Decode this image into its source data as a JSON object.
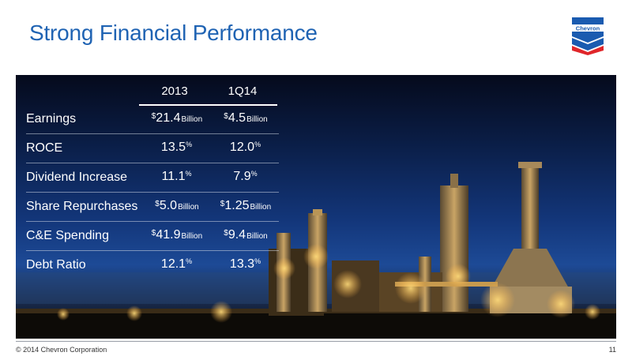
{
  "slide": {
    "title": "Strong Financial Performance",
    "logo_text": "Chevron",
    "footer_copyright": "© 2014 Chevron Corporation",
    "page_number": "11"
  },
  "table": {
    "headers": [
      "2013",
      "1Q14"
    ],
    "rows": [
      {
        "label": "Earnings",
        "c1": {
          "prefix": "$",
          "value": "21.4",
          "suffix": "",
          "unit": "Billion"
        },
        "c2": {
          "prefix": "$",
          "value": "4.5",
          "suffix": "",
          "unit": "Billion"
        }
      },
      {
        "label": "ROCE",
        "c1": {
          "prefix": "",
          "value": "13.5",
          "suffix": "%",
          "unit": ""
        },
        "c2": {
          "prefix": "",
          "value": "12.0",
          "suffix": "%",
          "unit": ""
        }
      },
      {
        "label": "Dividend Increase",
        "c1": {
          "prefix": "",
          "value": "11.1",
          "suffix": "%",
          "unit": ""
        },
        "c2": {
          "prefix": "",
          "value": "7.9",
          "suffix": "%",
          "unit": ""
        }
      },
      {
        "label": "Share Repurchases",
        "c1": {
          "prefix": "$",
          "value": "5.0",
          "suffix": "",
          "unit": "Billion"
        },
        "c2": {
          "prefix": "$",
          "value": "1.25",
          "suffix": "",
          "unit": "Billion"
        }
      },
      {
        "label": "C&E Spending",
        "c1": {
          "prefix": "$",
          "value": "41.9",
          "suffix": "",
          "unit": "Billion"
        },
        "c2": {
          "prefix": "$",
          "value": "9.4",
          "suffix": "",
          "unit": "Billion"
        }
      },
      {
        "label": "Debt Ratio",
        "c1": {
          "prefix": "",
          "value": "12.1",
          "suffix": "%",
          "unit": ""
        },
        "c2": {
          "prefix": "",
          "value": "13.3",
          "suffix": "%",
          "unit": ""
        }
      }
    ]
  },
  "colors": {
    "title": "#1f63b3",
    "logo_blue": "#1a5bb0",
    "logo_red": "#e0262a",
    "sky_dark": "#050a1c",
    "sky_mid": "#1d4a96",
    "lights": "#ffcf6a"
  },
  "icons": {
    "logo": "chevron-logo-icon"
  }
}
